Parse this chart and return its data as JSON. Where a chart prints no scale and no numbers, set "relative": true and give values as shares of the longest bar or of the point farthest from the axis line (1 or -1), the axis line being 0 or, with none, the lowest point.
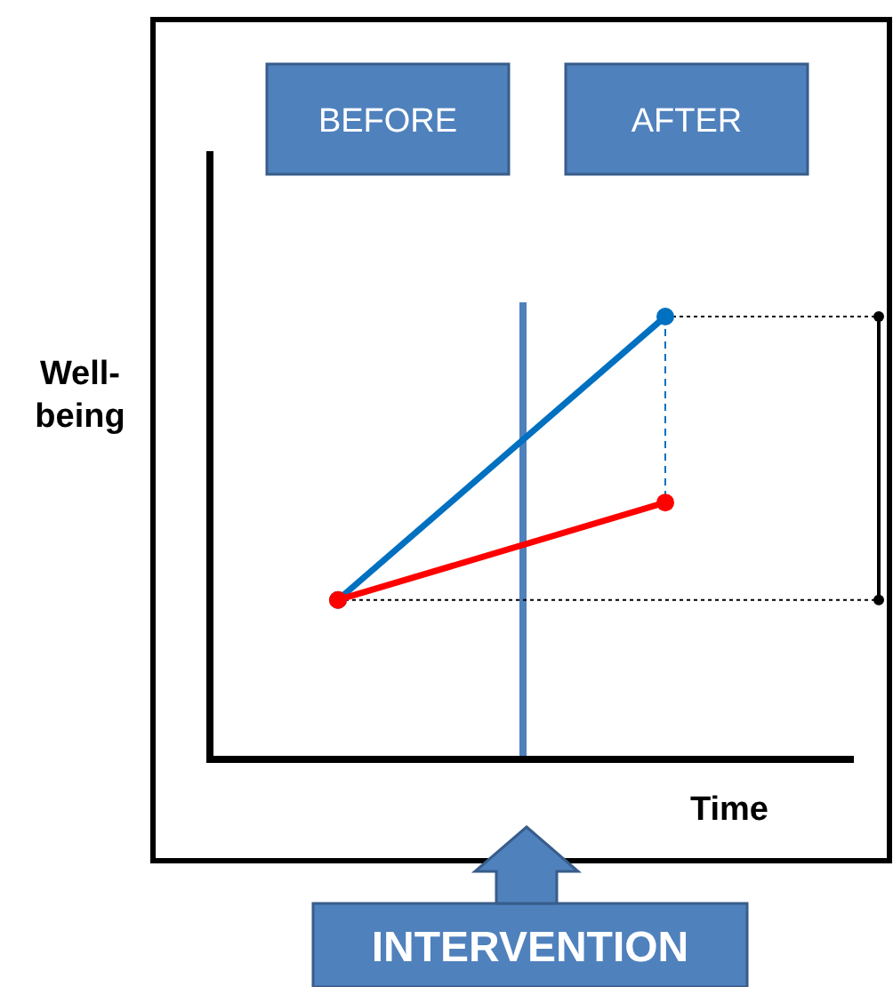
{
  "chart_data": {
    "type": "line",
    "relative": true,
    "xlabel": "Time",
    "ylabel": "Well-being",
    "categories": [
      null,
      null
    ],
    "series": [
      {
        "color": "#0070c0",
        "values": [
          0.36,
          1
        ]
      },
      {
        "color": "#ff0000",
        "values": [
          0.36,
          0.58
        ]
      }
    ],
    "marker": "circle",
    "line_style": "solid",
    "ref_lines": [
      {
        "axis": "y",
        "value": 1,
        "color": "#000000",
        "line_style": "dotted"
      },
      {
        "axis": "y",
        "value": 0.36,
        "color": "#000000",
        "line_style": "dotted"
      }
    ],
    "annotations": [
      "BEFORE",
      "AFTER",
      "INTERVENTION"
    ]
  }
}
